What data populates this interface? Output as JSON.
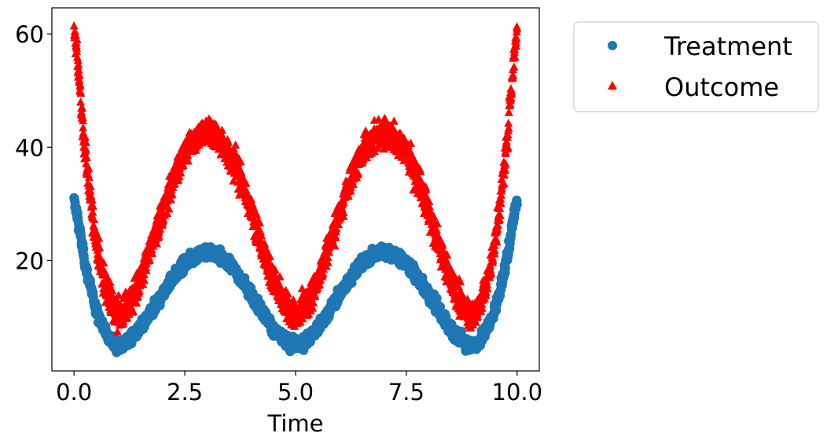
{
  "chart_data": {
    "type": "scatter",
    "title": "",
    "xlabel": "Time",
    "ylabel": "",
    "xlim": [
      -0.5,
      10.5
    ],
    "ylim": [
      0.5,
      64.6
    ],
    "grid": false,
    "legend_position": "outside upper right",
    "x_ticks": [
      0.0,
      2.5,
      5.0,
      7.5,
      10.0
    ],
    "x_tick_labels": [
      "0.0",
      "2.5",
      "5.0",
      "7.5",
      "10.0"
    ],
    "y_ticks": [
      20,
      40,
      60
    ],
    "y_tick_labels": [
      "20",
      "40",
      "60"
    ],
    "x": [
      0.0,
      0.25,
      0.5,
      0.75,
      1.0,
      1.25,
      1.5,
      1.75,
      2.0,
      2.25,
      2.5,
      2.75,
      3.0,
      3.25,
      3.5,
      3.75,
      4.0,
      4.25,
      4.5,
      4.75,
      5.0,
      5.25,
      5.5,
      5.75,
      6.0,
      6.25,
      6.5,
      6.75,
      7.0,
      7.25,
      7.5,
      7.75,
      8.0,
      8.25,
      8.5,
      8.75,
      9.0,
      9.25,
      9.5,
      9.75,
      10.0
    ],
    "series": [
      {
        "name": "Treatment",
        "marker": "circle",
        "color": "#1f77b4",
        "values": [
          30.5,
          19.5,
          11.5,
          7.0,
          5.0,
          6.0,
          8.0,
          11.0,
          14.0,
          17.0,
          19.5,
          20.8,
          21.5,
          20.8,
          19.5,
          17.0,
          14.0,
          11.0,
          8.0,
          6.0,
          5.0,
          6.0,
          8.0,
          11.0,
          14.0,
          17.0,
          19.5,
          20.8,
          21.5,
          20.8,
          19.5,
          17.0,
          14.0,
          11.0,
          8.0,
          6.0,
          5.0,
          7.0,
          11.5,
          19.5,
          30.5
        ],
        "noise": 1.2
      },
      {
        "name": "Outcome",
        "marker": "triangle",
        "color": "#ff0000",
        "values": [
          60.5,
          39.5,
          23.5,
          14.5,
          10.5,
          12.5,
          16.5,
          22.5,
          28.5,
          34.5,
          39.0,
          41.5,
          42.5,
          41.5,
          39.0,
          34.5,
          28.5,
          22.5,
          16.5,
          12.5,
          10.5,
          12.5,
          16.5,
          22.5,
          28.5,
          34.5,
          39.0,
          41.5,
          42.5,
          41.5,
          39.0,
          34.5,
          28.5,
          22.5,
          16.5,
          12.5,
          10.5,
          14.5,
          23.5,
          39.5,
          60.5
        ],
        "noise": 2.6
      }
    ]
  },
  "legend": {
    "items": [
      {
        "label": "Treatment",
        "color": "#1f77b4",
        "marker": "circle"
      },
      {
        "label": "Outcome",
        "color": "#ff0000",
        "marker": "triangle"
      }
    ]
  }
}
